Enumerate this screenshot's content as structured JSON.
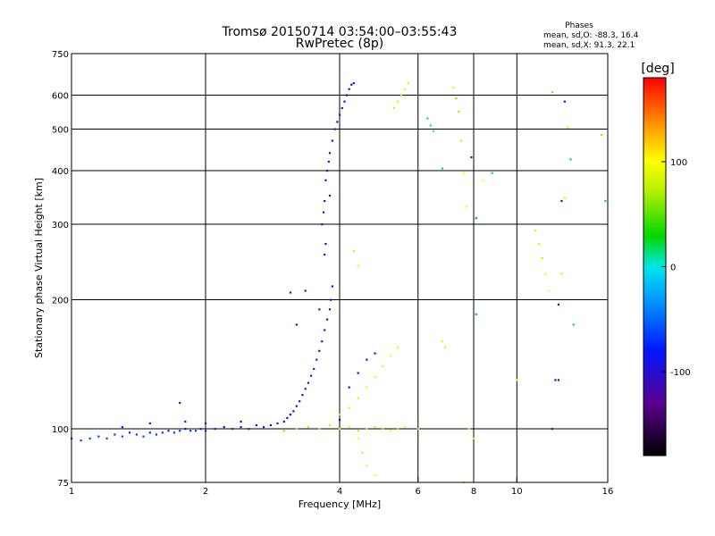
{
  "title": {
    "line1": "Tromsø 20150714 03:54:00–03:55:43",
    "line2": "RwPretec (8p)"
  },
  "phases_box": {
    "heading": "Phases",
    "line1": "mean, sd,O: -88.3, 16.4",
    "line2": "mean, sd,X:  91.3, 22.1"
  },
  "colorbar": {
    "label": "[deg]",
    "ticks": [
      {
        "value": 100,
        "label": "100"
      },
      {
        "value": 0,
        "label": "0"
      },
      {
        "value": -100,
        "label": "-100"
      }
    ],
    "range": [
      -180,
      180
    ]
  },
  "chart_data": {
    "type": "scatter",
    "title": "Tromsø 20150714 03:54:00–03:55:43",
    "subtitle": "RwPretec (8p)",
    "xlabel": "Frequency [MHz]",
    "ylabel": "Stationary phase Virtual Height [km]",
    "x_scale": "log",
    "y_scale": "log",
    "xlim": [
      1,
      16
    ],
    "ylim": [
      75,
      750
    ],
    "x_ticks": [
      1,
      2,
      4,
      6,
      8,
      10,
      16
    ],
    "x_tick_labels": [
      "1",
      "2",
      "4",
      "6",
      "8",
      "10",
      "16"
    ],
    "y_ticks": [
      75,
      100,
      200,
      300,
      400,
      500,
      600,
      750
    ],
    "y_tick_labels": [
      "75",
      "100",
      "200",
      "300",
      "400",
      "500",
      "600",
      "750"
    ],
    "x_gridlines": [
      2,
      4,
      6,
      8,
      10
    ],
    "y_gridlines": [
      100,
      200,
      300,
      400,
      500,
      600
    ],
    "color_variable": "phase [deg]",
    "series": [
      {
        "name": "O",
        "phase_mean": -88.3,
        "phase_sd": 16.4,
        "points": [
          [
            1.0,
            95,
            -60
          ],
          [
            1.05,
            94,
            -62
          ],
          [
            1.1,
            95,
            -58
          ],
          [
            1.15,
            96,
            -65
          ],
          [
            1.2,
            95,
            -60
          ],
          [
            1.25,
            97,
            -70
          ],
          [
            1.3,
            96,
            -62
          ],
          [
            1.35,
            98,
            -75
          ],
          [
            1.4,
            97,
            -68
          ],
          [
            1.45,
            96,
            -60
          ],
          [
            1.5,
            98,
            -72
          ],
          [
            1.55,
            97,
            -66
          ],
          [
            1.6,
            98,
            -70
          ],
          [
            1.65,
            99,
            -75
          ],
          [
            1.7,
            98,
            -66
          ],
          [
            1.75,
            99,
            -72
          ],
          [
            1.8,
            100,
            -80
          ],
          [
            1.85,
            99,
            -70
          ],
          [
            1.9,
            99,
            -66
          ],
          [
            1.95,
            100,
            -74
          ],
          [
            2.0,
            99,
            -70
          ],
          [
            2.1,
            100,
            -75
          ],
          [
            2.2,
            101,
            -78
          ],
          [
            2.3,
            100,
            -70
          ],
          [
            2.4,
            101,
            -80
          ],
          [
            2.5,
            100,
            -74
          ],
          [
            2.6,
            102,
            -82
          ],
          [
            2.7,
            101,
            -76
          ],
          [
            2.8,
            102,
            -84
          ],
          [
            2.9,
            103,
            -88
          ],
          [
            3.0,
            104,
            -90
          ],
          [
            3.05,
            106,
            -92
          ],
          [
            3.1,
            108,
            -94
          ],
          [
            3.15,
            110,
            -95
          ],
          [
            3.2,
            113,
            -96
          ],
          [
            3.25,
            116,
            -98
          ],
          [
            3.3,
            120,
            -100
          ],
          [
            3.35,
            124,
            -100
          ],
          [
            3.4,
            128,
            -102
          ],
          [
            3.45,
            133,
            -104
          ],
          [
            3.5,
            138,
            -100
          ],
          [
            3.55,
            145,
            -102
          ],
          [
            3.6,
            152,
            -106
          ],
          [
            3.65,
            160,
            -104
          ],
          [
            3.7,
            170,
            -100
          ],
          [
            3.75,
            180,
            -102
          ],
          [
            3.8,
            190,
            -105
          ],
          [
            3.82,
            200,
            -100
          ],
          [
            3.85,
            215,
            -102
          ],
          [
            3.7,
            255,
            -100
          ],
          [
            3.72,
            270,
            -104
          ],
          [
            3.65,
            300,
            -100
          ],
          [
            3.68,
            320,
            -106
          ],
          [
            3.7,
            340,
            -102
          ],
          [
            3.72,
            380,
            -100
          ],
          [
            3.75,
            400,
            -104
          ],
          [
            3.78,
            420,
            -100
          ],
          [
            3.8,
            440,
            -102
          ],
          [
            3.85,
            470,
            -100
          ],
          [
            3.9,
            500,
            -104
          ],
          [
            3.95,
            520,
            -102
          ],
          [
            4.0,
            540,
            -100
          ],
          [
            4.05,
            560,
            -104
          ],
          [
            4.1,
            580,
            -102
          ],
          [
            4.15,
            600,
            -100
          ],
          [
            4.2,
            620,
            -104
          ],
          [
            4.25,
            635,
            -102
          ],
          [
            4.3,
            640,
            -100
          ],
          [
            1.3,
            101,
            -80
          ],
          [
            1.5,
            103,
            -78
          ],
          [
            1.8,
            104,
            -76
          ],
          [
            2.0,
            103,
            -74
          ],
          [
            2.4,
            104,
            -80
          ],
          [
            4.0,
            105,
            -102
          ],
          [
            4.2,
            125,
            -100
          ],
          [
            4.4,
            135,
            -104
          ],
          [
            4.6,
            145,
            -102
          ],
          [
            4.8,
            150,
            -100
          ],
          [
            3.2,
            175,
            -104
          ],
          [
            3.35,
            210,
            -100
          ],
          [
            3.6,
            190,
            -102
          ],
          [
            1.75,
            115,
            -95
          ],
          [
            3.1,
            208,
            -100
          ],
          [
            3.8,
            350,
            -104
          ]
        ]
      },
      {
        "name": "X",
        "phase_mean": 91.3,
        "phase_sd": 22.1,
        "points": [
          [
            3.0,
            99,
            60
          ],
          [
            3.2,
            100,
            80
          ],
          [
            3.4,
            101,
            70
          ],
          [
            3.6,
            100,
            90
          ],
          [
            3.8,
            102,
            75
          ],
          [
            4.0,
            100,
            85
          ],
          [
            4.2,
            101,
            95
          ],
          [
            4.4,
            99,
            70
          ],
          [
            4.6,
            100,
            85
          ],
          [
            4.8,
            101,
            80
          ],
          [
            5.0,
            100,
            70
          ],
          [
            5.2,
            99,
            85
          ],
          [
            5.4,
            100,
            75
          ],
          [
            5.6,
            101,
            90
          ],
          [
            6.0,
            100,
            85
          ],
          [
            4.0,
            108,
            80
          ],
          [
            4.2,
            112,
            90
          ],
          [
            4.4,
            118,
            85
          ],
          [
            4.6,
            125,
            95
          ],
          [
            4.8,
            132,
            90
          ],
          [
            5.0,
            140,
            85
          ],
          [
            5.2,
            148,
            95
          ],
          [
            5.4,
            155,
            90
          ],
          [
            4.4,
            95,
            100
          ],
          [
            4.5,
            88,
            110
          ],
          [
            4.6,
            82,
            90
          ],
          [
            4.8,
            78,
            95
          ],
          [
            5.3,
            560,
            80
          ],
          [
            5.4,
            580,
            85
          ],
          [
            5.5,
            600,
            75
          ],
          [
            5.6,
            620,
            90
          ],
          [
            5.7,
            640,
            85
          ],
          [
            6.3,
            530,
            -10
          ],
          [
            6.4,
            510,
            -5
          ],
          [
            6.5,
            495,
            0
          ],
          [
            6.8,
            405,
            -20
          ],
          [
            7.2,
            625,
            90
          ],
          [
            7.3,
            590,
            60
          ],
          [
            7.4,
            550,
            120
          ],
          [
            7.5,
            470,
            110
          ],
          [
            7.6,
            395,
            100
          ],
          [
            7.7,
            330,
            100
          ],
          [
            7.9,
            430,
            -100
          ],
          [
            7.8,
            100,
            105
          ],
          [
            8.0,
            95,
            95
          ],
          [
            8.1,
            185,
            -30
          ],
          [
            8.4,
            380,
            100
          ],
          [
            8.8,
            395,
            10
          ],
          [
            7.6,
            75,
            110
          ],
          [
            8.1,
            310,
            -40
          ],
          [
            4.3,
            260,
            110
          ],
          [
            4.4,
            240,
            95
          ],
          [
            6.8,
            160,
            95
          ],
          [
            6.9,
            155,
            90
          ],
          [
            10.0,
            130,
            100
          ],
          [
            11.0,
            290,
            90
          ],
          [
            11.2,
            270,
            85
          ],
          [
            11.4,
            250,
            80
          ],
          [
            11.6,
            230,
            95
          ],
          [
            11.8,
            210,
            100
          ],
          [
            12.0,
            100,
            -100
          ],
          [
            12.2,
            130,
            -100
          ],
          [
            12.4,
            195,
            -100
          ],
          [
            12.6,
            340,
            -100
          ],
          [
            12.8,
            580,
            -100
          ],
          [
            13.0,
            505,
            110
          ],
          [
            13.2,
            425,
            -20
          ],
          [
            13.4,
            175,
            -20
          ],
          [
            12.0,
            610,
            130
          ],
          [
            15.5,
            485,
            125
          ],
          [
            15.8,
            340,
            -20
          ],
          [
            12.8,
            345,
            110
          ],
          [
            12.6,
            230,
            90
          ],
          [
            12.4,
            130,
            -100
          ]
        ]
      }
    ]
  }
}
